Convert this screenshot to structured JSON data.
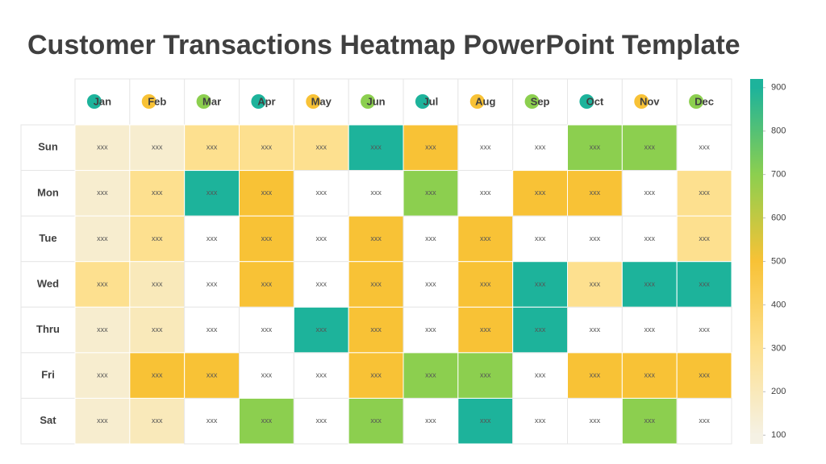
{
  "chart_data": {
    "type": "heatmap",
    "title": "Customer Transactions Heatmap PowerPoint Template",
    "categories": [
      "Jan",
      "Feb",
      "Mar",
      "Apr",
      "May",
      "Jun",
      "Jul",
      "Aug",
      "Sep",
      "Oct",
      "Nov",
      "Dec"
    ],
    "category_dot_colors": [
      "#1db39b",
      "#f8c236",
      "#8ccf4f",
      "#1db39b",
      "#f8c236",
      "#8ccf4f",
      "#1db39b",
      "#f8c236",
      "#8ccf4f",
      "#1db39b",
      "#f8c236",
      "#8ccf4f"
    ],
    "rows": [
      "Sun",
      "Mon",
      "Tue",
      "Wed",
      "Thru",
      "Fri",
      "Sat"
    ],
    "cell_label": "xxx",
    "values": [
      [
        150,
        150,
        300,
        300,
        300,
        900,
        500,
        null,
        null,
        700,
        700,
        null
      ],
      [
        150,
        300,
        900,
        500,
        null,
        null,
        700,
        null,
        500,
        500,
        null,
        300
      ],
      [
        150,
        300,
        null,
        500,
        null,
        500,
        null,
        500,
        null,
        null,
        null,
        300
      ],
      [
        300,
        200,
        null,
        500,
        null,
        500,
        null,
        500,
        900,
        300,
        900,
        900
      ],
      [
        150,
        200,
        null,
        null,
        900,
        500,
        null,
        500,
        900,
        null,
        null,
        null
      ],
      [
        150,
        500,
        500,
        null,
        null,
        500,
        700,
        700,
        null,
        500,
        500,
        500
      ],
      [
        150,
        200,
        null,
        700,
        null,
        700,
        null,
        900,
        null,
        null,
        700,
        null
      ]
    ],
    "colorscale": [
      [
        100,
        "#f5f1e4"
      ],
      [
        300,
        "#fde08f"
      ],
      [
        500,
        "#f8c236"
      ],
      [
        700,
        "#8ccf4f"
      ],
      [
        900,
        "#1db39b"
      ]
    ],
    "ylim": [
      80,
      920
    ],
    "yticks": [
      100,
      200,
      300,
      400,
      500,
      600,
      700,
      800,
      900
    ]
  }
}
